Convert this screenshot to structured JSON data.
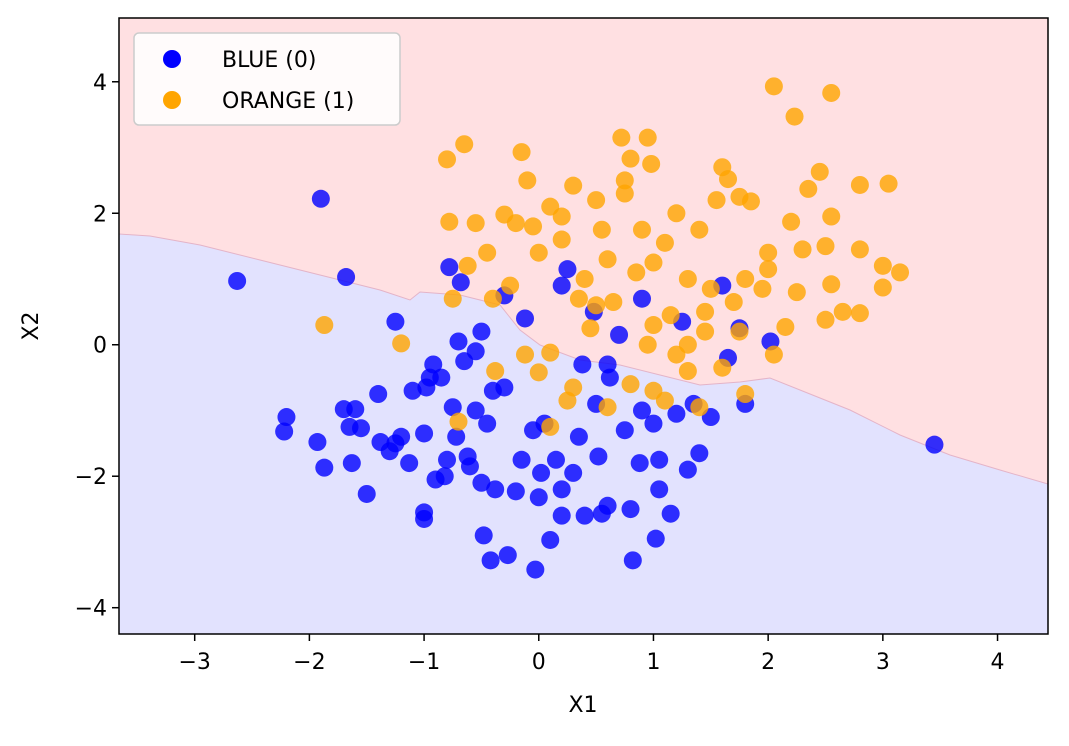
{
  "chart_data": {
    "type": "scatter",
    "x_label": "X1",
    "y_label": "X2",
    "xlim": [
      -3.66,
      4.44
    ],
    "ylim": [
      -4.4,
      4.97
    ],
    "xticks": [
      {
        "value": -3,
        "label": "−3"
      },
      {
        "value": -2,
        "label": "−2"
      },
      {
        "value": -1,
        "label": "−1"
      },
      0,
      1,
      2,
      3,
      4
    ],
    "yticks": [
      {
        "value": -4,
        "label": "−4"
      },
      {
        "value": -2,
        "label": "−2"
      },
      0,
      2,
      4
    ],
    "legend": "upper left",
    "series": [
      {
        "name": "BLUE (0)",
        "color": "#0000ff",
        "x": [
          -2.63,
          -1.9,
          -1.68,
          -2.2,
          -2.22,
          -1.93,
          -1.87,
          -1.7,
          -1.65,
          -1.6,
          -1.63,
          -1.55,
          -1.5,
          -1.4,
          -1.38,
          -1.3,
          -1.25,
          -1.2,
          -1.13,
          -1.0,
          -1.0,
          -1.0,
          -0.98,
          -0.92,
          -0.9,
          -0.85,
          -0.82,
          -0.8,
          -0.75,
          -0.72,
          -0.7,
          -0.65,
          -0.62,
          -0.6,
          -0.55,
          -0.5,
          -0.48,
          -0.45,
          -0.42,
          -0.4,
          -0.38,
          -0.3,
          -0.27,
          -0.2,
          -0.15,
          -0.12,
          -0.05,
          -0.03,
          0.0,
          0.02,
          0.05,
          0.1,
          0.15,
          0.2,
          0.2,
          0.25,
          0.3,
          0.35,
          0.38,
          0.4,
          0.48,
          0.5,
          0.52,
          0.55,
          0.6,
          0.62,
          0.7,
          0.75,
          0.8,
          0.82,
          0.88,
          0.9,
          1.0,
          1.02,
          1.05,
          1.05,
          1.15,
          1.2,
          1.3,
          1.4,
          1.5,
          1.6,
          1.65,
          1.75,
          1.8,
          2.02,
          3.45,
          -0.78,
          -0.68,
          -0.5,
          -0.3,
          0.2,
          1.25,
          1.35,
          -1.25,
          -1.1,
          -0.95,
          -0.55,
          0.6,
          0.9
        ],
        "y": [
          0.97,
          2.22,
          1.03,
          -1.1,
          -1.32,
          -1.48,
          -1.87,
          -0.98,
          -1.25,
          -0.98,
          -1.8,
          -1.27,
          -2.27,
          -0.75,
          -1.48,
          -1.62,
          -1.5,
          -1.4,
          -1.8,
          -1.35,
          -2.55,
          -2.65,
          -0.65,
          -0.3,
          -2.05,
          -0.5,
          -2.0,
          -1.75,
          -0.95,
          -1.4,
          0.05,
          -0.25,
          -1.7,
          -1.85,
          -1.0,
          -2.1,
          -2.9,
          -1.2,
          -3.28,
          -0.7,
          -2.2,
          -0.65,
          -3.2,
          -2.23,
          -1.75,
          0.4,
          -1.3,
          -3.42,
          -2.32,
          -1.95,
          -1.2,
          -2.97,
          -1.75,
          -2.2,
          -2.6,
          1.15,
          -1.95,
          -1.4,
          -0.3,
          -2.6,
          0.5,
          -0.9,
          -1.7,
          -2.57,
          -2.45,
          -0.5,
          0.15,
          -1.3,
          -2.5,
          -3.28,
          -1.8,
          -1.0,
          -1.2,
          -2.95,
          -1.75,
          -2.2,
          -2.57,
          -1.05,
          -1.9,
          -1.65,
          -1.1,
          0.9,
          -0.2,
          0.25,
          -0.9,
          0.05,
          -1.52,
          1.18,
          0.95,
          0.2,
          0.75,
          0.9,
          0.35,
          -0.9,
          0.35,
          -0.7,
          -0.5,
          -0.1,
          -0.3,
          0.7
        ]
      },
      {
        "name": "ORANGE (1)",
        "color": "#ffa500",
        "x": [
          2.05,
          2.55,
          2.23,
          -0.8,
          -0.65,
          0.72,
          0.95,
          -0.15,
          0.8,
          0.98,
          1.6,
          1.65,
          2.45,
          2.35,
          2.8,
          3.05,
          -0.78,
          -0.55,
          -0.3,
          -0.1,
          0.3,
          0.5,
          0.75,
          1.2,
          1.55,
          1.75,
          1.85,
          2.2,
          2.55,
          -0.62,
          -0.4,
          -0.25,
          0.0,
          0.2,
          0.4,
          0.6,
          0.85,
          1.0,
          1.3,
          1.5,
          1.8,
          2.0,
          2.3,
          2.5,
          2.8,
          3.0,
          3.15,
          2.55,
          2.25,
          1.95,
          1.7,
          2.65,
          2.5,
          2.8,
          3.0,
          2.05,
          2.15,
          -1.87,
          -1.2,
          -0.75,
          -0.7,
          -0.38,
          -0.12,
          0.0,
          0.1,
          0.1,
          0.25,
          0.3,
          0.5,
          0.6,
          0.8,
          1.0,
          1.1,
          1.3,
          1.4,
          1.6,
          1.8,
          1.0,
          1.15,
          1.3,
          1.45,
          0.45,
          0.2,
          -0.05,
          0.35,
          0.65,
          1.75,
          2.0,
          1.1,
          0.9,
          1.4,
          0.55,
          -0.2,
          -0.45,
          0.1,
          0.95,
          1.2,
          1.45,
          0.75
        ],
        "y": [
          3.93,
          3.83,
          3.47,
          2.82,
          3.05,
          3.15,
          3.15,
          2.93,
          2.83,
          2.75,
          2.7,
          2.52,
          2.63,
          2.37,
          2.43,
          2.45,
          1.87,
          1.85,
          1.98,
          2.5,
          2.42,
          2.2,
          2.5,
          2.0,
          2.2,
          2.25,
          2.18,
          1.87,
          1.95,
          1.2,
          0.7,
          0.9,
          1.4,
          1.6,
          1.0,
          1.3,
          1.1,
          1.25,
          1.0,
          0.85,
          1.0,
          1.4,
          1.45,
          1.5,
          1.45,
          1.2,
          1.1,
          0.92,
          0.8,
          0.85,
          0.65,
          0.5,
          0.38,
          0.48,
          0.87,
          -0.15,
          0.27,
          0.3,
          0.02,
          0.7,
          -1.17,
          -0.4,
          -0.15,
          -0.42,
          -0.12,
          -1.25,
          -0.85,
          -0.65,
          0.6,
          -0.95,
          -0.6,
          -0.7,
          -0.85,
          -0.4,
          -0.95,
          -0.35,
          -0.75,
          0.3,
          0.45,
          0.0,
          0.5,
          0.25,
          1.95,
          1.8,
          0.7,
          0.65,
          0.2,
          1.15,
          1.55,
          1.75,
          1.75,
          1.75,
          1.85,
          1.4,
          2.1,
          0.0,
          -0.15,
          0.2,
          2.3
        ]
      }
    ]
  }
}
